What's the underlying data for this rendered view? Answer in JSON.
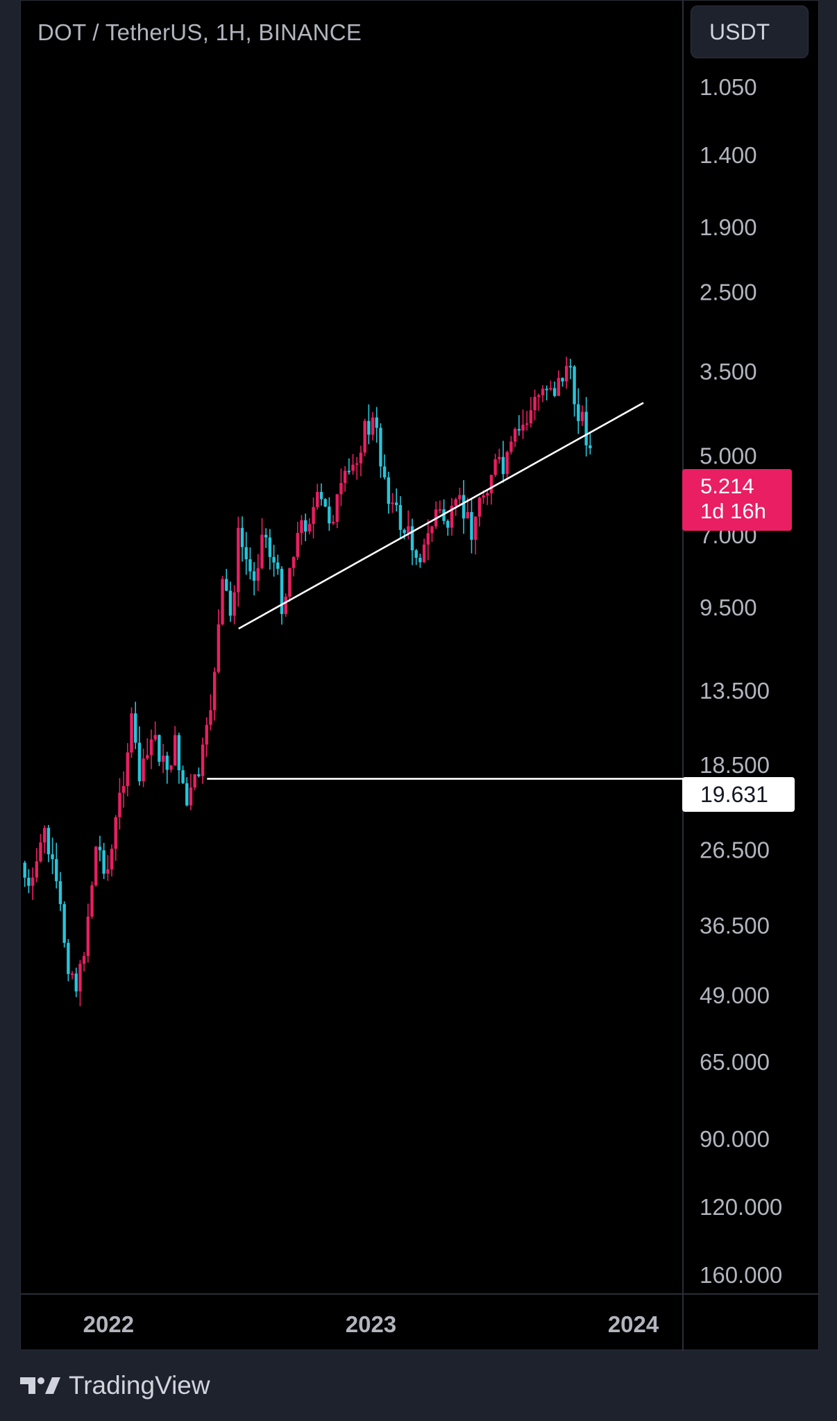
{
  "header": {
    "symbol_title": "DOT / TetherUS, 1H, BINANCE",
    "currency_button": "USDT"
  },
  "price_badge": {
    "price": "5.214",
    "countdown": "1d 16h"
  },
  "level_badge": {
    "price": "19.631"
  },
  "brand": {
    "name": "TradingView",
    "icon": "tradingview-logo-icon"
  },
  "colors": {
    "up": "#26c6da",
    "down": "#e91e63",
    "background": "#000000",
    "frame": "#1e222d",
    "axis_text": "#b2b5be",
    "drawing": "#ffffff"
  },
  "chart_data": {
    "type": "candlestick",
    "title": "DOT / TetherUS, 1H, BINANCE",
    "y_scale": "log",
    "y_inverted": true,
    "y_ticks": [
      "1.050",
      "1.400",
      "1.900",
      "2.500",
      "3.500",
      "5.000",
      "7.000",
      "9.500",
      "13.500",
      "18.500",
      "26.500",
      "36.500",
      "49.000",
      "65.000",
      "90.000",
      "120.000",
      "160.000"
    ],
    "y_tick_values": [
      1.05,
      1.4,
      1.9,
      2.5,
      3.5,
      5.0,
      7.0,
      9.5,
      13.5,
      18.5,
      26.5,
      36.5,
      49.0,
      65.0,
      90.0,
      120.0,
      160.0
    ],
    "x_ticks": [
      "2022",
      "2023",
      "2024"
    ],
    "x_tick_values": [
      "2022-01-01",
      "2023-01-01",
      "2024-01-01"
    ],
    "ylim": [
      160,
      0.92
    ],
    "xlim": [
      "2021-09-01",
      "2024-03-10"
    ],
    "last_price": 5.214,
    "horizontal_level": 19.631,
    "trendline": {
      "start": [
        "2022-07-01",
        10.4
      ],
      "end": [
        "2024-01-15",
        4.0
      ]
    },
    "horizontal_line_start": "2022-05-18",
    "anchors": [
      [
        "2021-09-01",
        28.0
      ],
      [
        "2021-09-15",
        33.0
      ],
      [
        "2021-10-01",
        24.0
      ],
      [
        "2021-10-10",
        27.0
      ],
      [
        "2021-10-25",
        34.0
      ],
      [
        "2021-11-05",
        42.0
      ],
      [
        "2021-11-20",
        48.0
      ],
      [
        "2021-12-01",
        37.0
      ],
      [
        "2021-12-15",
        26.0
      ],
      [
        "2022-01-01",
        29.0
      ],
      [
        "2022-01-20",
        20.0
      ],
      [
        "2022-02-01",
        15.5
      ],
      [
        "2022-02-15",
        20.0
      ],
      [
        "2022-03-05",
        16.0
      ],
      [
        "2022-03-20",
        19.0
      ],
      [
        "2022-04-05",
        17.0
      ],
      [
        "2022-04-20",
        22.0
      ],
      [
        "2022-05-05",
        19.5
      ],
      [
        "2022-05-18",
        16.5
      ],
      [
        "2022-06-01",
        11.0
      ],
      [
        "2022-06-10",
        8.5
      ],
      [
        "2022-06-20",
        10.0
      ],
      [
        "2022-07-01",
        7.0
      ],
      [
        "2022-07-20",
        8.5
      ],
      [
        "2022-08-05",
        6.8
      ],
      [
        "2022-08-20",
        8.0
      ],
      [
        "2022-09-01",
        9.5
      ],
      [
        "2022-09-15",
        7.3
      ],
      [
        "2022-10-01",
        6.6
      ],
      [
        "2022-10-20",
        6.1
      ],
      [
        "2022-11-05",
        6.5
      ],
      [
        "2022-11-20",
        5.9
      ],
      [
        "2022-12-05",
        5.3
      ],
      [
        "2022-12-20",
        4.6
      ],
      [
        "2023-01-05",
        4.35
      ],
      [
        "2023-01-15",
        5.1
      ],
      [
        "2023-02-01",
        6.3
      ],
      [
        "2023-02-15",
        6.8
      ],
      [
        "2023-03-01",
        7.3
      ],
      [
        "2023-03-15",
        7.6
      ],
      [
        "2023-04-01",
        6.3
      ],
      [
        "2023-04-20",
        6.7
      ],
      [
        "2023-05-05",
        6.2
      ],
      [
        "2023-05-20",
        6.8
      ],
      [
        "2023-06-05",
        5.9
      ],
      [
        "2023-06-20",
        5.2
      ],
      [
        "2023-07-05",
        5.4
      ],
      [
        "2023-07-20",
        4.7
      ],
      [
        "2023-08-05",
        4.3
      ],
      [
        "2023-08-20",
        3.95
      ],
      [
        "2023-09-05",
        3.6
      ],
      [
        "2023-09-15",
        3.8
      ],
      [
        "2023-10-01",
        3.4
      ],
      [
        "2023-10-10",
        3.9
      ],
      [
        "2023-10-20",
        4.2
      ],
      [
        "2023-11-01",
        4.8
      ],
      [
        "2023-11-05",
        5.2
      ]
    ]
  }
}
